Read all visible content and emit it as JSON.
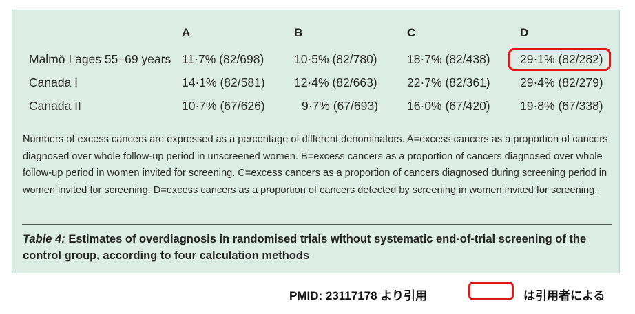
{
  "table": {
    "headers": [
      "A",
      "B",
      "C",
      "D"
    ],
    "rows": [
      {
        "label": "Malmö I ages 55–69 years",
        "cells": [
          "11·7% (82/698)",
          "10·5% (82/780)",
          "18·7% (82/438)",
          "29·1% (82/282)"
        ]
      },
      {
        "label": "Canada I",
        "cells": [
          "14·1% (82/581)",
          "12·4% (82/663)",
          "22·7% (82/361)",
          "29·4% (82/279)"
        ]
      },
      {
        "label": "Canada II",
        "cells": [
          "10·7% (67/626)",
          "9·7% (67/693)",
          "16·0% (67/420)",
          "19·8% (67/338)"
        ]
      }
    ],
    "footnote": "Numbers of excess cancers are expressed as a percentage of different denominators. A=excess cancers as a proportion of cancers diagnosed over whole follow-up period in unscreened women. B=excess cancers as a proportion of cancers diagnosed over whole follow-up period in women invited for screening. C=excess cancers as a proportion of cancers diagnosed during screening period in women invited for screening. D=excess cancers as a proportion of cancers detected by screening in women invited for screening.",
    "caption_label": "Table 4:",
    "caption_text": " Estimates of overdiagnosis in randomised trials without systematic end-of-trial screening of the control group, according to four calculation methods"
  },
  "annotation": {
    "source_note": "PMID: 23117178 より引用",
    "legend_text": "は引用者による",
    "highlight_color": "#e01818"
  },
  "colors": {
    "panel_bg": "#dcede5"
  }
}
